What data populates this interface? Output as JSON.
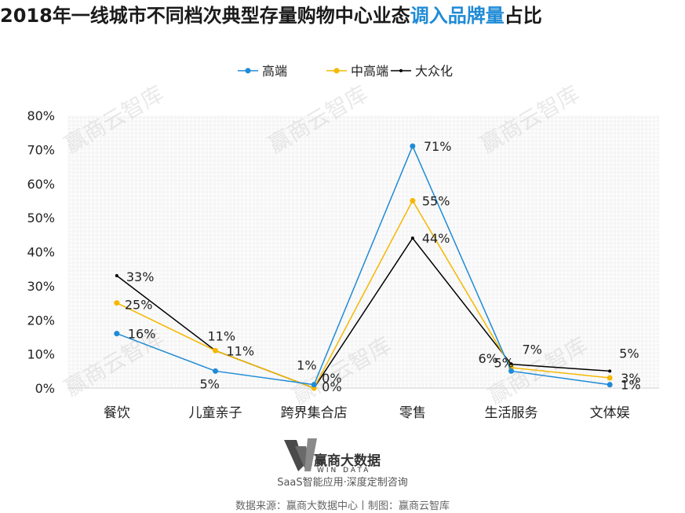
{
  "title": {
    "prefix": "2018年一线城市不同档次典型存量购物中心业态",
    "highlight": "调入品牌量",
    "suffix": "占比"
  },
  "chart_data": {
    "type": "line",
    "categories": [
      "餐饮",
      "儿童亲子",
      "跨界集合店",
      "零售",
      "生活服务",
      "文体娱"
    ],
    "ylim": [
      0,
      0.8
    ],
    "yticks": [
      "0%",
      "10%",
      "20%",
      "30%",
      "40%",
      "50%",
      "60%",
      "70%",
      "80%"
    ],
    "legend_position": "top",
    "grid": "dotted",
    "series": [
      {
        "name": "高端",
        "color": "#1f8bd6",
        "values": [
          0.16,
          0.05,
          0.01,
          0.71,
          0.05,
          0.01
        ],
        "labels": [
          "16%",
          "5%",
          "1%",
          "71%",
          "5%",
          "1%"
        ]
      },
      {
        "name": "中高端",
        "color": "#f5b800",
        "values": [
          0.25,
          0.11,
          0.0,
          0.55,
          0.06,
          0.03
        ],
        "labels": [
          "25%",
          "11%",
          "0%",
          "55%",
          "6%",
          "3%"
        ]
      },
      {
        "name": "大众化",
        "color": "#000000",
        "values": [
          0.33,
          0.11,
          0.0,
          0.44,
          0.07,
          0.05
        ],
        "labels": [
          "33%",
          "11%",
          "0%",
          "44%",
          "7%",
          "5%"
        ]
      }
    ]
  },
  "watermark": "赢商云智库",
  "footer": {
    "logo_main": "赢商大数据",
    "logo_sub": "WIN DATA",
    "tagline": "SaaS智能应用·深度定制咨询",
    "source": "数据来源：赢商大数据中心丨制图：赢商云智库"
  }
}
